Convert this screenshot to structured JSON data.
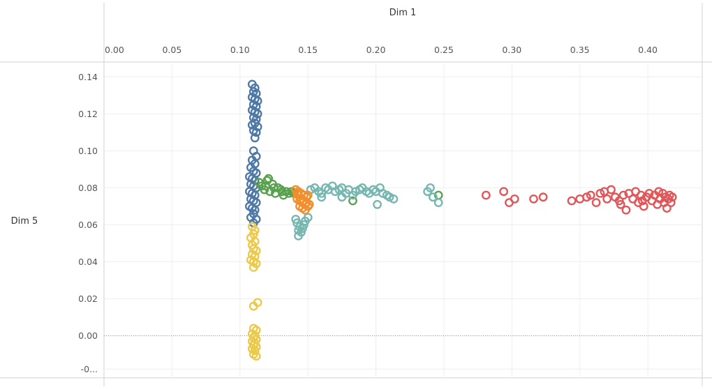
{
  "chart_data": {
    "type": "scatter",
    "x_axis_title": "Dim 1",
    "y_axis_title": "Dim 5",
    "x_ticks": [
      "0.00",
      "0.05",
      "0.10",
      "0.15",
      "0.20",
      "0.25",
      "0.30",
      "0.35",
      "0.40"
    ],
    "x_tick_values": [
      0,
      0.05,
      0.1,
      0.15,
      0.2,
      0.25,
      0.3,
      0.35,
      0.4
    ],
    "y_ticks": [
      "0.14",
      "0.12",
      "0.10",
      "0.08",
      "0.06",
      "0.04",
      "0.02",
      "0.00",
      "-0..."
    ],
    "y_tick_values": [
      0.14,
      0.12,
      0.1,
      0.08,
      0.06,
      0.04,
      0.02,
      0.0,
      -0.018
    ],
    "xlim": [
      0.0,
      0.44
    ],
    "ylim": [
      -0.022,
      0.145
    ],
    "grid": true,
    "zero_line": true,
    "marker": "hollow-circle",
    "colors": {
      "blue": "#4e79a7",
      "yellow": "#edc948",
      "green": "#59a14f",
      "teal": "#76b7b2",
      "orange": "#f28e2b",
      "red": "#e15759"
    },
    "series": [
      {
        "color": "blue",
        "points": [
          [
            0.109,
            0.136
          ],
          [
            0.111,
            0.134
          ],
          [
            0.11,
            0.132
          ],
          [
            0.112,
            0.131
          ],
          [
            0.109,
            0.129
          ],
          [
            0.111,
            0.128
          ],
          [
            0.113,
            0.127
          ],
          [
            0.11,
            0.125
          ],
          [
            0.112,
            0.124
          ],
          [
            0.109,
            0.122
          ],
          [
            0.111,
            0.121
          ],
          [
            0.113,
            0.12
          ],
          [
            0.11,
            0.118
          ],
          [
            0.112,
            0.117
          ],
          [
            0.111,
            0.115
          ],
          [
            0.109,
            0.114
          ],
          [
            0.113,
            0.113
          ],
          [
            0.11,
            0.111
          ],
          [
            0.112,
            0.11
          ],
          [
            0.111,
            0.107
          ],
          [
            0.11,
            0.1
          ],
          [
            0.112,
            0.097
          ],
          [
            0.109,
            0.095
          ],
          [
            0.111,
            0.093
          ],
          [
            0.108,
            0.091
          ],
          [
            0.11,
            0.089
          ],
          [
            0.112,
            0.088
          ],
          [
            0.107,
            0.086
          ],
          [
            0.109,
            0.085
          ],
          [
            0.111,
            0.084
          ],
          [
            0.108,
            0.082
          ],
          [
            0.11,
            0.081
          ],
          [
            0.112,
            0.08
          ],
          [
            0.107,
            0.078
          ],
          [
            0.109,
            0.077
          ],
          [
            0.111,
            0.076
          ],
          [
            0.108,
            0.074
          ],
          [
            0.11,
            0.073
          ],
          [
            0.112,
            0.072
          ],
          [
            0.107,
            0.07
          ],
          [
            0.109,
            0.069
          ],
          [
            0.111,
            0.068
          ],
          [
            0.11,
            0.066
          ],
          [
            0.108,
            0.064
          ],
          [
            0.112,
            0.063
          ],
          [
            0.11,
            0.061
          ]
        ]
      },
      {
        "color": "yellow",
        "points": [
          [
            0.109,
            0.059
          ],
          [
            0.111,
            0.057
          ],
          [
            0.11,
            0.055
          ],
          [
            0.108,
            0.053
          ],
          [
            0.111,
            0.051
          ],
          [
            0.109,
            0.049
          ],
          [
            0.11,
            0.047
          ],
          [
            0.112,
            0.046
          ],
          [
            0.109,
            0.044
          ],
          [
            0.111,
            0.043
          ],
          [
            0.108,
            0.041
          ],
          [
            0.11,
            0.04
          ],
          [
            0.112,
            0.039
          ],
          [
            0.11,
            0.037
          ],
          [
            0.11,
            0.016
          ],
          [
            0.113,
            0.018
          ],
          [
            0.11,
            0.004
          ],
          [
            0.112,
            0.003
          ],
          [
            0.109,
            0.001
          ],
          [
            0.111,
            0.0
          ],
          [
            0.11,
            -0.001
          ],
          [
            0.112,
            -0.002
          ],
          [
            0.109,
            -0.003
          ],
          [
            0.111,
            -0.004
          ],
          [
            0.11,
            -0.005
          ],
          [
            0.112,
            -0.006
          ],
          [
            0.109,
            -0.007
          ],
          [
            0.111,
            -0.008
          ],
          [
            0.11,
            -0.01
          ],
          [
            0.112,
            -0.011
          ]
        ]
      },
      {
        "color": "green",
        "points": [
          [
            0.114,
            0.083
          ],
          [
            0.116,
            0.081
          ],
          [
            0.118,
            0.079
          ],
          [
            0.12,
            0.084
          ],
          [
            0.122,
            0.078
          ],
          [
            0.124,
            0.082
          ],
          [
            0.126,
            0.077
          ],
          [
            0.128,
            0.08
          ],
          [
            0.13,
            0.079
          ],
          [
            0.132,
            0.076
          ],
          [
            0.134,
            0.078
          ],
          [
            0.136,
            0.077
          ],
          [
            0.138,
            0.078
          ],
          [
            0.119,
            0.081
          ],
          [
            0.125,
            0.08
          ],
          [
            0.131,
            0.078
          ],
          [
            0.14,
            0.077
          ],
          [
            0.183,
            0.073
          ],
          [
            0.246,
            0.076
          ],
          [
            0.121,
            0.085
          ]
        ]
      },
      {
        "color": "teal",
        "points": [
          [
            0.141,
            0.063
          ],
          [
            0.142,
            0.061
          ],
          [
            0.144,
            0.059
          ],
          [
            0.143,
            0.057
          ],
          [
            0.145,
            0.056
          ],
          [
            0.146,
            0.058
          ],
          [
            0.148,
            0.062
          ],
          [
            0.143,
            0.054
          ],
          [
            0.147,
            0.06
          ],
          [
            0.15,
            0.064
          ],
          [
            0.152,
            0.079
          ],
          [
            0.155,
            0.08
          ],
          [
            0.158,
            0.078
          ],
          [
            0.16,
            0.077
          ],
          [
            0.163,
            0.08
          ],
          [
            0.165,
            0.079
          ],
          [
            0.168,
            0.081
          ],
          [
            0.17,
            0.078
          ],
          [
            0.173,
            0.079
          ],
          [
            0.175,
            0.08
          ],
          [
            0.178,
            0.077
          ],
          [
            0.18,
            0.079
          ],
          [
            0.183,
            0.076
          ],
          [
            0.185,
            0.078
          ],
          [
            0.188,
            0.079
          ],
          [
            0.19,
            0.08
          ],
          [
            0.193,
            0.078
          ],
          [
            0.195,
            0.077
          ],
          [
            0.198,
            0.079
          ],
          [
            0.2,
            0.078
          ],
          [
            0.203,
            0.08
          ],
          [
            0.205,
            0.077
          ],
          [
            0.208,
            0.076
          ],
          [
            0.21,
            0.075
          ],
          [
            0.213,
            0.074
          ],
          [
            0.201,
            0.071
          ],
          [
            0.16,
            0.075
          ],
          [
            0.175,
            0.075
          ],
          [
            0.238,
            0.078
          ],
          [
            0.24,
            0.08
          ],
          [
            0.242,
            0.075
          ],
          [
            0.246,
            0.072
          ]
        ]
      },
      {
        "color": "orange",
        "points": [
          [
            0.141,
            0.079
          ],
          [
            0.143,
            0.078
          ],
          [
            0.145,
            0.077
          ],
          [
            0.147,
            0.076
          ],
          [
            0.149,
            0.075
          ],
          [
            0.142,
            0.074
          ],
          [
            0.144,
            0.073
          ],
          [
            0.146,
            0.072
          ],
          [
            0.148,
            0.071
          ],
          [
            0.15,
            0.07
          ],
          [
            0.143,
            0.076
          ],
          [
            0.145,
            0.074
          ],
          [
            0.147,
            0.073
          ],
          [
            0.149,
            0.072
          ],
          [
            0.144,
            0.07
          ],
          [
            0.146,
            0.069
          ],
          [
            0.148,
            0.068
          ],
          [
            0.151,
            0.071
          ],
          [
            0.142,
            0.077
          ],
          [
            0.15,
            0.076
          ]
        ]
      },
      {
        "color": "red",
        "points": [
          [
            0.281,
            0.076
          ],
          [
            0.294,
            0.078
          ],
          [
            0.298,
            0.072
          ],
          [
            0.302,
            0.074
          ],
          [
            0.316,
            0.074
          ],
          [
            0.323,
            0.075
          ],
          [
            0.344,
            0.073
          ],
          [
            0.35,
            0.074
          ],
          [
            0.355,
            0.075
          ],
          [
            0.358,
            0.076
          ],
          [
            0.362,
            0.072
          ],
          [
            0.365,
            0.077
          ],
          [
            0.368,
            0.078
          ],
          [
            0.37,
            0.074
          ],
          [
            0.373,
            0.079
          ],
          [
            0.376,
            0.075
          ],
          [
            0.379,
            0.073
          ],
          [
            0.382,
            0.076
          ],
          [
            0.384,
            0.068
          ],
          [
            0.386,
            0.077
          ],
          [
            0.389,
            0.074
          ],
          [
            0.391,
            0.078
          ],
          [
            0.393,
            0.072
          ],
          [
            0.395,
            0.076
          ],
          [
            0.397,
            0.07
          ],
          [
            0.399,
            0.075
          ],
          [
            0.401,
            0.077
          ],
          [
            0.403,
            0.073
          ],
          [
            0.405,
            0.076
          ],
          [
            0.407,
            0.071
          ],
          [
            0.409,
            0.074
          ],
          [
            0.411,
            0.077
          ],
          [
            0.412,
            0.072
          ],
          [
            0.413,
            0.075
          ],
          [
            0.414,
            0.069
          ],
          [
            0.415,
            0.074
          ],
          [
            0.416,
            0.076
          ],
          [
            0.417,
            0.072
          ],
          [
            0.418,
            0.075
          ],
          [
            0.396,
            0.073
          ],
          [
            0.38,
            0.071
          ],
          [
            0.408,
            0.078
          ]
        ]
      }
    ]
  }
}
